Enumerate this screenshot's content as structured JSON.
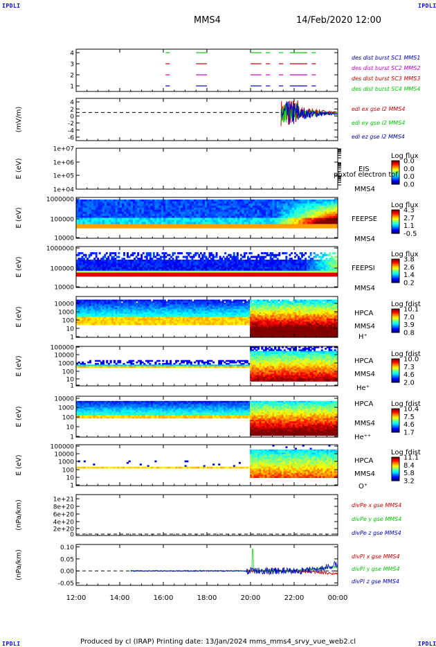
{
  "corners": {
    "tl": "IPDLI",
    "tr": "IPDLI",
    "bl": "IPDLI",
    "br": "IPDLI"
  },
  "header": {
    "spacecraft": "MMS4",
    "datetime": "14/Feb/2020 12:00"
  },
  "time_axis": {
    "labels": [
      "12:00",
      "14:00",
      "16:00",
      "18:00",
      "20:00",
      "22:00",
      "00:00"
    ]
  },
  "footer": {
    "text": "Produced by cl (IRAP)   Printing date: 13/Jan/2024   mms_mms4_srvy_vue_web2.cl"
  },
  "colors": {
    "sc1": "#0000cc",
    "sc2": "#cc00cc",
    "sc3": "#cc0000",
    "sc4": "#00cc00",
    "dashed": "#000000"
  },
  "chart_data": [
    {
      "id": "burst",
      "type": "line",
      "ylim": [
        0.5,
        4.5
      ],
      "y_ticks": [
        "4",
        "3",
        "2",
        "1"
      ],
      "legend": [
        "des dist burst SC1 MMS1",
        "des dist burst SC2 MMS2",
        "des dist burst SC3 MMS3",
        "des dist burst SC4 MMS4"
      ],
      "burst_intervals_hours": [
        [
          16.1,
          16.3
        ],
        [
          17.5,
          18.0
        ],
        [
          20.0,
          20.5
        ],
        [
          20.7,
          20.9
        ],
        [
          21.3,
          21.5
        ],
        [
          21.8,
          22.6
        ],
        [
          22.8,
          23.0
        ]
      ]
    },
    {
      "id": "edi",
      "type": "line",
      "ylabel": "(mV/m)",
      "ylim": [
        -7,
        5
      ],
      "y_ticks": [
        "4",
        "2",
        "0",
        "-2",
        "-4",
        "-6"
      ],
      "legend": [
        "edi ex gse l2 MMS4",
        "edi ey gse l2 MMS4",
        "edi ez gse l2 MMS4"
      ],
      "active_hours": [
        21.3,
        24.0
      ]
    },
    {
      "id": "eis",
      "type": "heatmap",
      "ylabel": "E (eV)",
      "y_ticks": [
        "1e+07",
        "1e+06",
        "1e+05",
        "1e+04"
      ],
      "labels": [
        "EIS",
        "MMS4"
      ],
      "overlay": "phxtof electron tof",
      "colorbar": {
        "title": "Log flux",
        "ticks": [
          "0.0",
          "0.0",
          "0.0",
          "0.0"
        ]
      }
    },
    {
      "id": "feepse",
      "type": "heatmap",
      "ylabel": "E (eV)",
      "y_ticks": [
        "1000000",
        "100000",
        "10000"
      ],
      "labels": [
        "FEEPSE",
        "MMS4"
      ],
      "colorbar": {
        "title": "Log flux",
        "ticks": [
          "4.3",
          "2.7",
          "1.1",
          "-0.5"
        ]
      }
    },
    {
      "id": "feepsi",
      "type": "heatmap",
      "ylabel": "E (eV)",
      "y_ticks": [
        "1000000",
        "100000",
        "10000"
      ],
      "labels": [
        "FEEPSI",
        "MMS4"
      ],
      "colorbar": {
        "title": "Log flux",
        "ticks": [
          "3.8",
          "2.6",
          "1.4",
          "0.2"
        ]
      }
    },
    {
      "id": "hpca_h",
      "type": "heatmap",
      "ylabel": "E (eV)",
      "y_ticks": [
        "10000",
        "1000",
        "100",
        "10",
        "1"
      ],
      "labels": [
        "HPCA",
        "MMS4",
        "H⁺"
      ],
      "colorbar": {
        "title": "Log fdist",
        "ticks": [
          "10.1",
          "7.0",
          "3.9",
          "0.8"
        ]
      }
    },
    {
      "id": "hpca_he",
      "type": "heatmap",
      "ylabel": "E (eV)",
      "y_ticks": [
        "100000",
        "10000",
        "1000",
        "100",
        "10",
        "1"
      ],
      "labels": [
        "HPCA",
        "MMS4",
        "He⁺"
      ],
      "colorbar": {
        "title": "Log fdist",
        "ticks": [
          "10.0",
          "7.3",
          "4.6",
          "2.0"
        ]
      }
    },
    {
      "id": "hpca_hepp",
      "type": "heatmap",
      "ylabel": "E (eV)",
      "y_ticks": [
        "10000",
        "1000",
        "100",
        "10",
        "1"
      ],
      "labels": [
        "HPCA",
        "MMS4",
        "He⁺⁺"
      ],
      "colorbar": {
        "title": "Log fdist",
        "ticks": [
          "10.4",
          "7.5",
          "4.6",
          "1.7"
        ]
      }
    },
    {
      "id": "hpca_o",
      "type": "heatmap",
      "ylabel": "E (eV)",
      "y_ticks": [
        "100000",
        "10000",
        "1000",
        "100",
        "10",
        "1"
      ],
      "labels": [
        "HPCA",
        "MMS4",
        "O⁺"
      ],
      "colorbar": {
        "title": "Log fdist",
        "ticks": [
          "11.1",
          "8.4",
          "5.8",
          "3.2"
        ]
      }
    },
    {
      "id": "divpe",
      "type": "line",
      "ylabel": "(nPa/km)",
      "ylim": [
        0,
        1e+21
      ],
      "y_ticks": [
        "1e+21",
        "8e+20",
        "6e+20",
        "4e+20",
        "2e+20",
        "0"
      ],
      "legend": [
        "divPe x gse MMS4",
        "divPe y gse MMS4",
        "divPe z gse MMS4"
      ]
    },
    {
      "id": "divpi",
      "type": "line",
      "ylabel": "(nPa/km)",
      "ylim": [
        -0.06,
        0.11
      ],
      "y_ticks": [
        "0.10",
        "0.05",
        "0.00",
        "-0.05"
      ],
      "legend": [
        "divPi x gse MMS4",
        "divPi y gse MMS4",
        "divPi z gse MMS4"
      ]
    }
  ]
}
